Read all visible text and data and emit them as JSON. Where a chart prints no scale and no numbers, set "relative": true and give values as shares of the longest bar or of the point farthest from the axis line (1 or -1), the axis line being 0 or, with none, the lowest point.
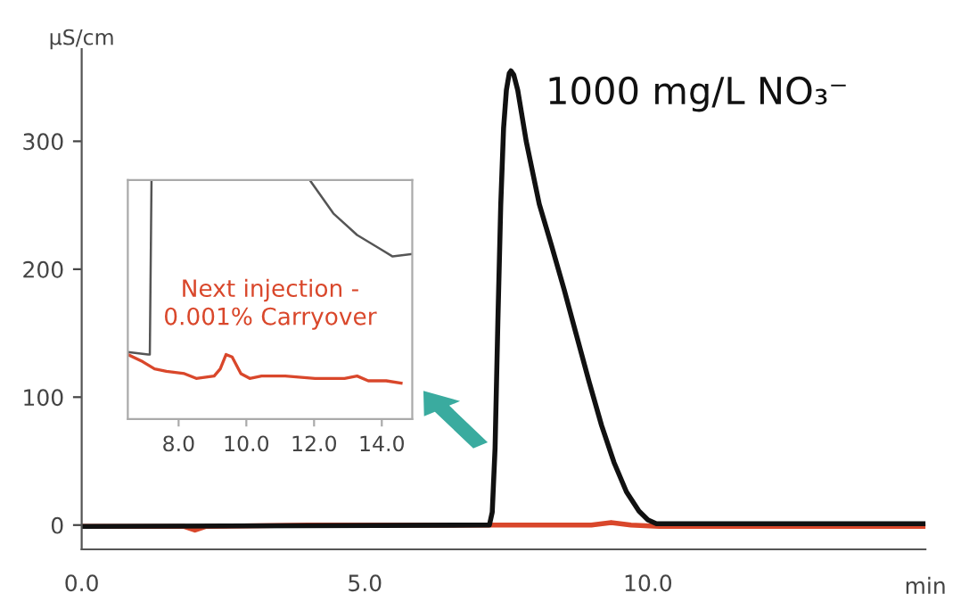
{
  "chart_data": [
    {
      "type": "line",
      "xlabel": "min",
      "ylabel": "µS/cm",
      "xlim": [
        0,
        14.9
      ],
      "ylim": [
        -19,
        372
      ],
      "xticks": [
        {
          "value": 0,
          "label": "0.0"
        },
        {
          "value": 5,
          "label": "5.0"
        },
        {
          "value": 10,
          "label": "10.0"
        }
      ],
      "yticks": [
        0,
        100,
        200,
        300
      ],
      "grid": false,
      "annotations": [
        {
          "text": "1000 mg/L NO₃⁻",
          "x": 7.58,
          "y": 355
        }
      ],
      "series": [
        {
          "color": "#d9472b",
          "x": [
            0,
            1.8,
            2.0,
            2.2,
            4,
            7.2,
            9.0,
            9.35,
            9.7,
            10.2,
            14.9
          ],
          "values": [
            -1,
            -1,
            -4,
            -1,
            0,
            0,
            0,
            2,
            0,
            -1,
            -1
          ]
        },
        {
          "color": "#111111",
          "x": [
            0,
            7.2,
            7.25,
            7.3,
            7.35,
            7.4,
            7.45,
            7.5,
            7.55,
            7.58,
            7.63,
            7.7,
            7.85,
            8.08,
            8.3,
            8.52,
            8.74,
            8.96,
            9.18,
            9.4,
            9.62,
            9.84,
            10.0,
            10.15,
            14.9
          ],
          "values": [
            -1,
            0,
            10,
            60,
            160,
            250,
            310,
            340,
            353,
            355,
            352,
            340,
            300,
            251,
            218,
            184,
            148,
            112,
            78,
            49,
            26,
            11,
            4,
            1,
            1
          ]
        }
      ]
    },
    {
      "type": "line",
      "relative": true,
      "tick_labels": "x",
      "xlim": [
        6.5,
        14.9
      ],
      "xticks": [
        {
          "value": 8,
          "label": "8.0"
        },
        {
          "value": 10,
          "label": "10.0"
        },
        {
          "value": 12,
          "label": "12.0"
        },
        {
          "value": 14,
          "label": "14.0"
        }
      ],
      "grid": false,
      "series": [
        {
          "color": "#555555",
          "x": [
            6.5,
            7.1,
            7.15,
            7.2,
            11.87,
            12.57,
            13.27,
            13.97,
            14.32,
            14.9
          ],
          "values": [
            0.28,
            0.27,
            0.27,
            1.0,
            1.0,
            0.86,
            0.77,
            0.71,
            0.68,
            0.69
          ]
        },
        {
          "name": "Next injection -\n0.001% Carryover",
          "color": "#d9472b",
          "x": [
            6.5,
            6.94,
            7.29,
            7.64,
            8.17,
            8.52,
            9.05,
            9.23,
            9.4,
            9.58,
            9.84,
            10.1,
            10.45,
            11.15,
            12.03,
            12.9,
            13.27,
            13.6,
            14.13,
            14.57
          ],
          "values": [
            0.27,
            0.24,
            0.21,
            0.2,
            0.19,
            0.17,
            0.18,
            0.21,
            0.27,
            0.26,
            0.19,
            0.17,
            0.18,
            0.18,
            0.17,
            0.17,
            0.18,
            0.16,
            0.16,
            0.15
          ]
        }
      ]
    }
  ]
}
